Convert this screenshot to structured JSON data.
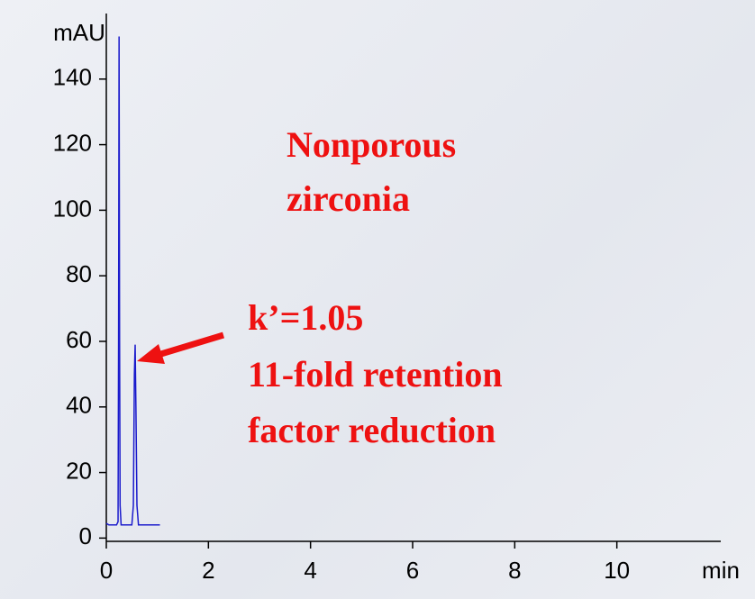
{
  "chart_data": {
    "type": "line",
    "y_axis_label": "mAU",
    "x_axis_label": "min",
    "annotations": [
      "Nonporous",
      "zirconia",
      "k’=1.05",
      "11-fold retention",
      "factor reduction"
    ],
    "x": [
      0,
      0.05,
      0.2,
      0.23,
      0.24,
      0.25,
      0.26,
      0.27,
      0.29,
      0.5,
      0.53,
      0.55,
      0.565,
      0.58,
      0.6,
      0.63,
      0.8,
      1.05
    ],
    "series": [
      {
        "name": "trace",
        "color": "#1a1acc",
        "values": [
          4.5,
          4,
          4,
          5,
          60,
          153,
          60,
          10,
          4,
          4,
          10,
          50,
          59,
          40,
          10,
          4,
          4,
          4
        ]
      }
    ],
    "xlim": [
      0,
      12
    ],
    "xticks": [
      0,
      2,
      4,
      6,
      8,
      10
    ],
    "ylim": [
      -1,
      160
    ],
    "yticks": [
      0,
      20,
      40,
      60,
      80,
      100,
      120,
      140
    ]
  }
}
